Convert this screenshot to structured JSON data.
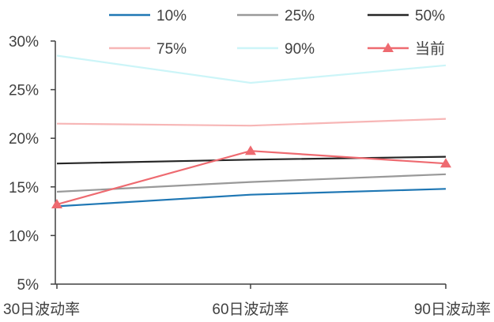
{
  "chart_data": {
    "type": "line",
    "categories": [
      "30日波动率",
      "60日波动率",
      "90日波动率"
    ],
    "y_tick_labels": [
      "5%",
      "10%",
      "15%",
      "20%",
      "25%",
      "30%"
    ],
    "ylim": [
      5,
      30
    ],
    "grid": false,
    "legend_position": "top",
    "series": [
      {
        "name": "10%",
        "values": [
          13.0,
          14.2,
          14.8
        ],
        "color": "#1f77b4",
        "marker": "none"
      },
      {
        "name": "25%",
        "values": [
          14.5,
          15.5,
          16.3
        ],
        "color": "#999999",
        "marker": "none"
      },
      {
        "name": "50%",
        "values": [
          17.4,
          17.8,
          18.1
        ],
        "color": "#262626",
        "marker": "none"
      },
      {
        "name": "75%",
        "values": [
          21.5,
          21.3,
          22.0
        ],
        "color": "#f7b6b6",
        "marker": "none"
      },
      {
        "name": "90%",
        "values": [
          28.5,
          25.7,
          27.5
        ],
        "color": "#ccf5f8",
        "marker": "none"
      },
      {
        "name": "当前",
        "values": [
          13.2,
          18.7,
          17.4
        ],
        "color": "#ee6a70",
        "marker": "triangle"
      }
    ]
  }
}
